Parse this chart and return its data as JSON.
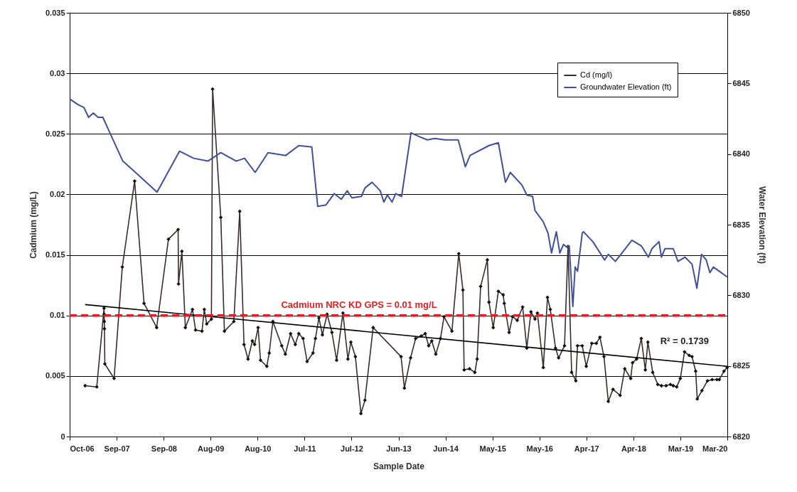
{
  "chart_data": {
    "type": "line",
    "xlabel": "Sample Date",
    "ylabel": "Cadmium (mg/L)",
    "y2label": "Water Elevation (ft)",
    "xlim": [
      "2006-10-01",
      "2020-03-01"
    ],
    "xticks": [
      {
        "value": "2006-10-01",
        "label": "Oct-06"
      },
      {
        "value": "2007-09-16",
        "label": "Sep-07"
      },
      {
        "value": "2008-09-01",
        "label": "Sep-08"
      },
      {
        "value": "2009-08-16",
        "label": "Aug-09"
      },
      {
        "value": "2010-08-01",
        "label": "Aug-10"
      },
      {
        "value": "2011-07-17",
        "label": "Jul-11"
      },
      {
        "value": "2012-07-01",
        "label": "Jul-12"
      },
      {
        "value": "2013-06-16",
        "label": "Jun-13"
      },
      {
        "value": "2014-06-01",
        "label": "Jun-14"
      },
      {
        "value": "2015-05-17",
        "label": "May-15"
      },
      {
        "value": "2016-05-01",
        "label": "May-16"
      },
      {
        "value": "2017-04-16",
        "label": "Apr-17"
      },
      {
        "value": "2018-04-01",
        "label": "Apr-18"
      },
      {
        "value": "2019-03-17",
        "label": "Mar-19"
      },
      {
        "value": "2020-03-01",
        "label": "Mar-20"
      }
    ],
    "ylim": [
      0,
      0.035
    ],
    "yticks": [
      0,
      0.005,
      0.01,
      0.015,
      0.02,
      0.025,
      0.03,
      0.035
    ],
    "y2lim": [
      6820,
      6850
    ],
    "y2ticks": [
      6820,
      6825,
      6830,
      6835,
      6840,
      6845,
      6850
    ],
    "grid": "y",
    "legend": "top right",
    "ref_lines": [
      {
        "axis": "y",
        "value": 0.01,
        "label": "Cadmium NRC KD GPS = 0.01 mg/L",
        "color": "#e02020",
        "line_style": "dashed"
      }
    ],
    "annotations": [
      "R² = 0.1739"
    ],
    "series": [
      {
        "name": "Cd (mg/l)",
        "color": "#3a2c2c",
        "marker": "diamond",
        "x": [
          "2007-01-24",
          "2007-04-21",
          "2007-06-14",
          "2007-06-15",
          "2007-06-16",
          "2007-06-17",
          "2007-06-20",
          "2007-08-28",
          "2007-10-28",
          "2008-01-28",
          "2008-04-07",
          "2008-07-10",
          "2008-10-06",
          "2008-12-17",
          "2008-12-20",
          "2009-01-14",
          "2009-02-09",
          "2009-04-03",
          "2009-04-26",
          "2009-06-13",
          "2009-06-30",
          "2009-07-18",
          "2009-08-22",
          "2009-08-31",
          "2009-10-31",
          "2009-11-27",
          "2010-02-05",
          "2010-03-21",
          "2010-04-22",
          "2010-05-22",
          "2010-06-23",
          "2010-07-10",
          "2010-08-05",
          "2010-08-23",
          "2010-10-09",
          "2010-10-27",
          "2010-11-23",
          "2011-01-28",
          "2011-02-24",
          "2011-04-04",
          "2011-05-09",
          "2011-06-04",
          "2011-07-06",
          "2011-08-05",
          "2011-09-18",
          "2011-10-06",
          "2011-11-01",
          "2011-11-27",
          "2012-01-01",
          "2012-02-06",
          "2012-03-12",
          "2012-04-28",
          "2012-06-04",
          "2012-06-26",
          "2012-07-30",
          "2012-09-09",
          "2012-10-09",
          "2012-12-09",
          "2013-07-05",
          "2013-07-30",
          "2013-09-14",
          "2013-10-22",
          "2013-12-02",
          "2014-01-01",
          "2014-01-27",
          "2014-02-19",
          "2014-03-21",
          "2014-04-25",
          "2014-05-21",
          "2014-07-19",
          "2014-09-08",
          "2014-10-09",
          "2014-10-18",
          "2014-11-27",
          "2015-01-06",
          "2015-01-23",
          "2015-02-18",
          "2015-04-09",
          "2015-04-21",
          "2015-05-23",
          "2015-06-30",
          "2015-08-05",
          "2015-08-13",
          "2015-09-18",
          "2015-10-14",
          "2015-11-18",
          "2015-12-28",
          "2016-01-28",
          "2016-02-28",
          "2016-03-29",
          "2016-04-16",
          "2016-05-30",
          "2016-06-30",
          "2016-07-21",
          "2016-08-29",
          "2016-09-21",
          "2016-11-04",
          "2016-11-30",
          "2016-12-27",
          "2017-01-27",
          "2017-02-09",
          "2017-03-16",
          "2017-04-15",
          "2017-05-26",
          "2017-06-29",
          "2017-07-26",
          "2017-08-25",
          "2017-09-26",
          "2017-10-31",
          "2017-12-23",
          "2018-01-27",
          "2018-03-12",
          "2018-03-26",
          "2018-04-25",
          "2018-05-30",
          "2018-06-29",
          "2018-07-18",
          "2018-08-23",
          "2018-09-30",
          "2018-10-27",
          "2018-12-01",
          "2019-01-02",
          "2019-01-23",
          "2019-02-18",
          "2019-03-17",
          "2019-04-17",
          "2019-05-22",
          "2019-06-12",
          "2019-07-09",
          "2019-07-21",
          "2019-08-25",
          "2019-10-05",
          "2019-11-09",
          "2019-12-14",
          "2020-01-01",
          "2020-02-05",
          "2020-02-29"
        ],
        "values": [
          0.0042,
          0.0041,
          0.0106,
          0.0101,
          0.0095,
          0.0089,
          0.006,
          0.0048,
          0.014,
          0.0211,
          0.011,
          0.009,
          0.0163,
          0.0171,
          0.0126,
          0.0153,
          0.009,
          0.0105,
          0.0088,
          0.0087,
          0.0105,
          0.0093,
          0.0097,
          0.0287,
          0.0181,
          0.0087,
          0.0095,
          0.0186,
          0.0076,
          0.0064,
          0.0079,
          0.0076,
          0.009,
          0.0063,
          0.0058,
          0.0069,
          0.0095,
          0.0075,
          0.0068,
          0.0085,
          0.0076,
          0.0085,
          0.0081,
          0.0062,
          0.0069,
          0.0081,
          0.0098,
          0.0084,
          0.0101,
          0.0086,
          0.0063,
          0.0102,
          0.0064,
          0.0078,
          0.0066,
          0.0019,
          0.003,
          0.009,
          0.0066,
          0.004,
          0.0065,
          0.0081,
          0.0083,
          0.0085,
          0.0075,
          0.0079,
          0.0068,
          0.0081,
          0.0099,
          0.0087,
          0.0151,
          0.0121,
          0.0055,
          0.0056,
          0.0053,
          0.0064,
          0.0124,
          0.0146,
          0.0111,
          0.009,
          0.012,
          0.0117,
          0.011,
          0.0086,
          0.0099,
          0.0096,
          0.0107,
          0.0073,
          0.0103,
          0.0097,
          0.0102,
          0.0057,
          0.0115,
          0.0105,
          0.0073,
          0.0065,
          0.0075,
          0.0157,
          0.0053,
          0.0046,
          0.0075,
          0.0075,
          0.0058,
          0.0077,
          0.0077,
          0.0082,
          0.0066,
          0.0029,
          0.0039,
          0.0034,
          0.0056,
          0.0048,
          0.0061,
          0.0064,
          0.0081,
          0.0055,
          0.0078,
          0.0053,
          0.0043,
          0.0042,
          0.0042,
          0.0043,
          0.0042,
          0.0041,
          0.0048,
          0.007,
          0.0067,
          0.0066,
          0.0054,
          0.0031,
          0.0038,
          0.0046,
          0.0047,
          0.0047,
          0.0047,
          0.0054,
          0.0057
        ]
      },
      {
        "type": "line",
        "color": "#000000",
        "x": [
          "2007-01-24",
          "2020-02-29"
        ],
        "values": [
          0.0109,
          0.0058
        ]
      },
      {
        "name": "Groundwater Elevation (ft)",
        "color": "#3f4f9c",
        "axis": "y2",
        "x": [
          "2006-10-01",
          "2006-12-02",
          "2007-01-15",
          "2007-02-19",
          "2007-03-26",
          "2007-04-30",
          "2007-06-05",
          "2007-07-18",
          "2007-11-01",
          "2008-02-15",
          "2008-07-13",
          "2008-12-27",
          "2009-04-12",
          "2009-07-27",
          "2009-10-31",
          "2010-02-23",
          "2010-04-26",
          "2010-07-14",
          "2010-10-18",
          "2011-02-27",
          "2011-06-04",
          "2011-09-09",
          "2011-10-23",
          "2011-12-24",
          "2012-02-23",
          "2012-04-16",
          "2012-05-30",
          "2012-07-04",
          "2012-09-13",
          "2012-10-09",
          "2012-12-01",
          "2013-01-31",
          "2013-02-27",
          "2013-03-25",
          "2013-04-29",
          "2013-05-26",
          "2013-07-09",
          "2013-09-17",
          "2013-11-27",
          "2014-01-18",
          "2014-03-12",
          "2014-05-30",
          "2014-09-04",
          "2014-10-27",
          "2014-12-01",
          "2015-04-21",
          "2015-06-30",
          "2015-08-22",
          "2015-09-27",
          "2015-12-23",
          "2016-01-28",
          "2016-03-11",
          "2016-03-29",
          "2016-05-30",
          "2016-07-04",
          "2016-07-30",
          "2016-09-04",
          "2016-09-30",
          "2016-10-27",
          "2016-11-22",
          "2016-12-09",
          "2017-01-05",
          "2017-01-22",
          "2017-02-09",
          "2017-03-16",
          "2017-03-25",
          "2017-06-03",
          "2017-08-30",
          "2017-09-26",
          "2017-11-18",
          "2018-03-21",
          "2018-05-30",
          "2018-07-22",
          "2018-08-17",
          "2018-10-09",
          "2018-10-27",
          "2018-11-22",
          "2019-01-23",
          "2019-02-27",
          "2019-04-21",
          "2019-06-12",
          "2019-07-18",
          "2019-08-22",
          "2019-09-26",
          "2019-10-23",
          "2019-11-18",
          "2020-02-29"
        ],
        "values": [
          6843.9,
          6843.5,
          6843.3,
          6842.6,
          6842.9,
          6842.6,
          6842.6,
          6841.7,
          6839.5,
          6838.6,
          6837.3,
          6840.2,
          6839.7,
          6839.5,
          6840.1,
          6839.5,
          6839.7,
          6838.7,
          6840.1,
          6839.9,
          6840.6,
          6840.5,
          6836.3,
          6836.4,
          6837.2,
          6836.8,
          6837.4,
          6836.9,
          6837.0,
          6837.6,
          6838.0,
          6837.4,
          6836.6,
          6837.1,
          6836.6,
          6837.2,
          6837.0,
          6841.5,
          6841.2,
          6841.0,
          6841.1,
          6841.0,
          6841.0,
          6839.1,
          6839.9,
          6840.6,
          6840.8,
          6838.0,
          6838.7,
          6837.8,
          6837.1,
          6837.0,
          6836.0,
          6835.2,
          6834.4,
          6833.0,
          6834.5,
          6833.0,
          6833.6,
          6833.4,
          6833.5,
          6829.2,
          6832.0,
          6831.7,
          6834.4,
          6834.5,
          6833.8,
          6832.5,
          6832.9,
          6832.4,
          6833.9,
          6833.5,
          6832.7,
          6833.3,
          6833.8,
          6832.7,
          6833.3,
          6833.3,
          6832.4,
          6832.7,
          6832.2,
          6830.5,
          6832.9,
          6832.5,
          6831.6,
          6832.0,
          6831.3
        ]
      }
    ]
  }
}
